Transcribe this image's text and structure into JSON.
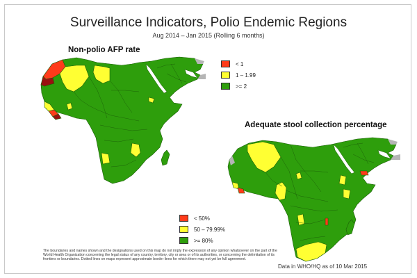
{
  "title": "Surveillance Indicators, Polio Endemic Regions",
  "subtitle": "Aug 2014 – Jan 2015 (Rolling 6 months)",
  "colors": {
    "green": "#2e9e0c",
    "yellow": "#ffff33",
    "red": "#ff3b1a",
    "dark_red": "#9b1010",
    "grey": "#b5b5b5",
    "water": "#ffffff",
    "border": "#1b5e08"
  },
  "map1": {
    "title": "Non-polio AFP rate",
    "legend": [
      {
        "label": "< 1",
        "color": "#ff3b1a"
      },
      {
        "label": "1 – 1.99",
        "color": "#ffff33"
      },
      {
        "label": ">= 2",
        "color": "#2e9e0c"
      }
    ]
  },
  "map2": {
    "title": "Adequate stool collection percentage",
    "legend": [
      {
        "label": "< 50%",
        "color": "#ff3b1a"
      },
      {
        "label": "50 – 79.99%",
        "color": "#ffff33"
      },
      {
        "label": ">= 80%",
        "color": "#2e9e0c"
      }
    ]
  },
  "footnote": "The boundaries and names shown and the designations used on this map do not imply the expression of any opinion whatsoever on the part of the World Health Organization concerning the legal status of any country, territory, city or area or of its authorities, or concerning the delimitation of its frontiers or boundaries. Dotted lines on maps represent approximate border lines for which there may not yet be full agreement.",
  "data_source": "Data in WHO/HQ as of 10 Mar 2015"
}
